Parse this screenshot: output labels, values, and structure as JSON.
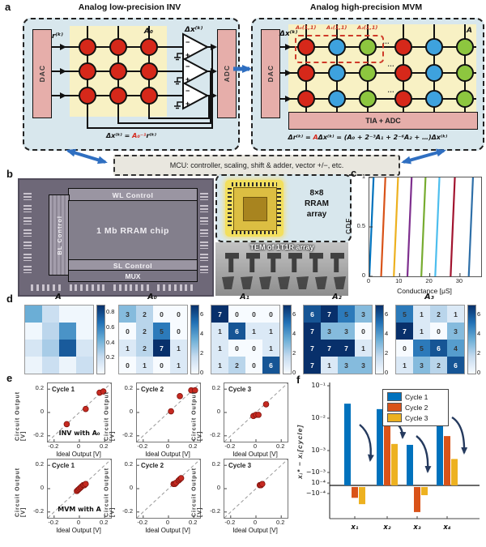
{
  "panels": {
    "a": "a",
    "b": "b",
    "c": "c",
    "d": "d",
    "e": "e",
    "f": "f"
  },
  "panel_a": {
    "left_title": "Analog low-precision INV",
    "right_title": "Analog high-precision MVM",
    "mcu": "MCU: controller, scaling, shift & adder, vector +/−, etc.",
    "circle_colors": {
      "red": "#d6281a",
      "blue": "#3ea2de",
      "green": "#8dc63f"
    },
    "left": {
      "dac": "DAC",
      "adc": "ADC",
      "input": "r⁽ᵏ⁾",
      "output": "Δx⁽ᵏ⁾",
      "matrix": "A₀",
      "opamp_minus": "−",
      "opamp_plus": "+",
      "formula_lhs": "Δx⁽ᵏ⁾ = ",
      "formula_red": "A₀⁻¹",
      "formula_rhs": "r⁽ᵏ⁾",
      "grid": {
        "rows": 3,
        "cols": 3,
        "colors": [
          "red",
          "red",
          "red"
        ]
      }
    },
    "right": {
      "dac": "DAC",
      "tia": "TIA + ADC",
      "input": "Δx⁽ᵏ⁾",
      "matrix": "A",
      "cell_labels": [
        "A₀(1,1)",
        "A₁(1,1)",
        "A₂(1,1)"
      ],
      "ellipsis": "…",
      "formula_lhs": "Δr⁽ᵏ⁾ = ",
      "formula_red": "A",
      "formula_rhs": "Δx⁽ᵏ⁾ = (A₀ + 2⁻³A₁ + 2⁻⁶A₂ + …)Δx⁽ᵏ⁾",
      "grid": {
        "rows": 3,
        "cols": 6,
        "colors": [
          "red",
          "blue",
          "green",
          "red",
          "blue",
          "green"
        ]
      }
    }
  },
  "panel_b": {
    "wl": "WL Control",
    "bl": "BL Control",
    "chip": "1 Mb RRAM chip",
    "sl": "SL Control",
    "mux": "MUX",
    "array_1": "8×8",
    "array_2": "RRAM",
    "array_3": "array",
    "tem": "TEM of 1T1R array"
  },
  "chart_data": [
    {
      "id": "cdf",
      "type": "line",
      "xlabel": "Conductance [μS]",
      "ylabel": "CDF",
      "xlim": [
        0,
        37
      ],
      "x_ticks": [
        0,
        10,
        20,
        30
      ],
      "y_ticks": [
        0,
        0.5,
        1
      ],
      "slant": 0.7,
      "curves": [
        {
          "color": "#0072BD",
          "conductance": 0.7
        },
        {
          "color": "#D95319",
          "conductance": 4.6
        },
        {
          "color": "#EDB120",
          "conductance": 8.8
        },
        {
          "color": "#7E2F8E",
          "conductance": 13.3
        },
        {
          "color": "#77AC30",
          "conductance": 17.9
        },
        {
          "color": "#4DBEEE",
          "conductance": 22.5
        },
        {
          "color": "#A2142F",
          "conductance": 27.6
        },
        {
          "color": "#2E6FA8",
          "conductance": 33.6
        }
      ]
    },
    {
      "id": "hm",
      "type": "heatmap",
      "maps": [
        {
          "title": "A",
          "vmax": 0.9,
          "show_values": false,
          "ticks": [
            0.8,
            0.6,
            0.4,
            0.2
          ],
          "values": [
            [
              0.45,
              0.2,
              0.03,
              0.03
            ],
            [
              0.03,
              0.25,
              0.55,
              0.03
            ],
            [
              0.15,
              0.3,
              0.75,
              0.15
            ],
            [
              0.05,
              0.2,
              0.05,
              0.2
            ]
          ]
        },
        {
          "title": "A₀",
          "vmax": 7,
          "show_values": true,
          "ticks": [
            6,
            4,
            2,
            0
          ],
          "values": [
            [
              3,
              2,
              0,
              0
            ],
            [
              0,
              2,
              5,
              0
            ],
            [
              1,
              2,
              7,
              1
            ],
            [
              0,
              1,
              0,
              1
            ]
          ]
        },
        {
          "title": "A₁",
          "vmax": 7,
          "show_values": true,
          "ticks": [
            6,
            4,
            2,
            0
          ],
          "values": [
            [
              7,
              0,
              0,
              0
            ],
            [
              1,
              6,
              1,
              1
            ],
            [
              1,
              0,
              0,
              1
            ],
            [
              1,
              2,
              0,
              6
            ]
          ]
        },
        {
          "title": "A₂",
          "vmax": 7,
          "show_values": true,
          "ticks": [
            6,
            4,
            2,
            0
          ],
          "values": [
            [
              6,
              7,
              5,
              3
            ],
            [
              7,
              3,
              3,
              0
            ],
            [
              7,
              7,
              7,
              1
            ],
            [
              7,
              1,
              3,
              3
            ]
          ]
        },
        {
          "title": "A₃",
          "vmax": 7,
          "show_values": true,
          "ticks": [
            6,
            4,
            2,
            0
          ],
          "values": [
            [
              5,
              1,
              2,
              1
            ],
            [
              7,
              1,
              0,
              3
            ],
            [
              0,
              5,
              6,
              4
            ],
            [
              1,
              3,
              2,
              6
            ]
          ]
        }
      ]
    },
    {
      "id": "scatter",
      "type": "scatter",
      "xlabel": "Ideal Output [V]",
      "ylabel": "Circuit Output [V]",
      "lim": [
        -0.25,
        0.25
      ],
      "ticks": [
        -0.2,
        0,
        0.2
      ],
      "point_color": "#c62a21",
      "plots": [
        {
          "label": "Cycle 1",
          "annotation": "INV with A₀",
          "points": [
            [
              -0.1,
              -0.1
            ],
            [
              0.05,
              0.03
            ],
            [
              0.16,
              0.17
            ],
            [
              0.19,
              0.18
            ]
          ]
        },
        {
          "label": "Cycle 2",
          "annotation": "",
          "points": [
            [
              0.02,
              0.01
            ],
            [
              0.09,
              0.14
            ],
            [
              0.18,
              0.19
            ],
            [
              0.21,
              0.19
            ]
          ]
        },
        {
          "label": "Cycle 3",
          "annotation": "",
          "points": [
            [
              -0.02,
              -0.03
            ],
            [
              0.0,
              -0.02
            ],
            [
              0.02,
              -0.02
            ],
            [
              0.08,
              0.07
            ]
          ]
        },
        {
          "label": "Cycle 1",
          "annotation": "MVM with A",
          "points": [
            [
              -0.02,
              -0.02
            ],
            [
              -0.01,
              -0.01
            ],
            [
              0.0,
              0.0
            ],
            [
              0.01,
              0.01
            ],
            [
              0.02,
              0.02
            ],
            [
              0.03,
              0.03
            ],
            [
              0.04,
              0.03
            ],
            [
              0.05,
              0.04
            ]
          ]
        },
        {
          "label": "Cycle 2",
          "annotation": "",
          "points": [
            [
              0.04,
              0.04
            ],
            [
              0.05,
              0.04
            ],
            [
              0.06,
              0.05
            ],
            [
              0.08,
              0.07
            ],
            [
              0.09,
              0.08
            ],
            [
              0.1,
              0.09
            ]
          ]
        },
        {
          "label": "Cycle 3",
          "annotation": "",
          "points": [
            [
              0.03,
              0.03
            ],
            [
              0.04,
              0.03
            ],
            [
              0.05,
              0.04
            ]
          ]
        }
      ]
    },
    {
      "id": "bars",
      "type": "bar",
      "categories": [
        "x₁",
        "x₂",
        "x₃",
        "x₄"
      ],
      "ylabel": "xᵢ* − xᵢ[cycle]",
      "pos_ticks": [
        [
          "10⁻¹",
          -1
        ],
        [
          "10⁻²",
          -2
        ],
        [
          "10⁻³",
          -3
        ],
        [
          "10⁻⁴",
          -4
        ]
      ],
      "neg_ticks": [
        [
          "−10⁻⁴",
          -4
        ],
        [
          "−10⁻³",
          -3
        ]
      ],
      "series": [
        {
          "name": "Cycle 1",
          "color": "#0072BD",
          "values": [
            0.028,
            0.019,
            0.0015,
            0.028
          ]
        },
        {
          "name": "Cycle 2",
          "color": "#D95319",
          "values": [
            -0.00016,
            0.0075,
            -0.00076,
            0.0028
          ]
        },
        {
          "name": "Cycle 3",
          "color": "#EDB120",
          "values": [
            -0.00032,
            0.0016,
            -0.00012,
            0.00055
          ]
        }
      ]
    }
  ]
}
